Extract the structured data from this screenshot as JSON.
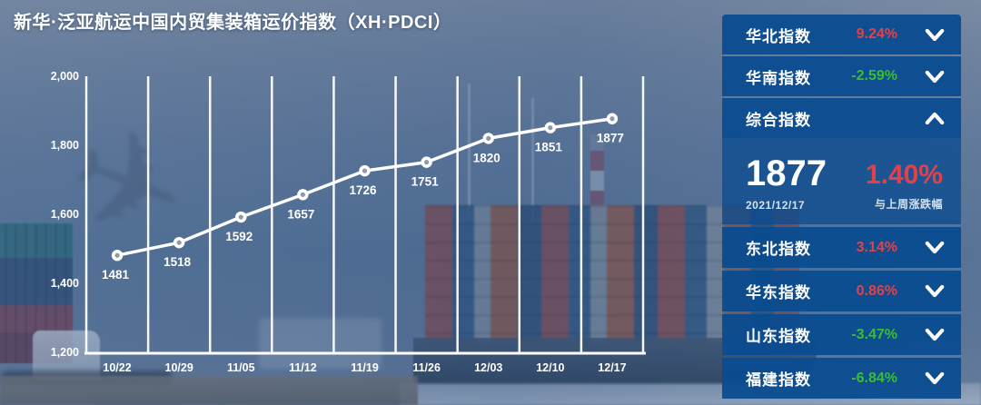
{
  "title": "新华·泛亚航运中国内贸集装箱运价指数（XH·PDCI）",
  "theme": {
    "panel_blue": "#0a4c90",
    "up_red": "#e2414b",
    "down_green": "#3bbd33",
    "chart_line": "#ffffff"
  },
  "chart_data": {
    "type": "line",
    "title": "新华·泛亚航运中国内贸集装箱运价指数（XH·PDCI）",
    "categories": [
      "10/22",
      "10/29",
      "11/05",
      "11/12",
      "11/19",
      "11/26",
      "12/03",
      "12/10",
      "12/17"
    ],
    "series": [
      {
        "name": "XH·PDCI 综合指数",
        "values": [
          1481,
          1518,
          1592,
          1657,
          1726,
          1751,
          1820,
          1851,
          1877
        ]
      }
    ],
    "ylim": [
      1200,
      2000
    ],
    "y_ticks": [
      "1,200",
      "1,400",
      "1,600",
      "1,800",
      "2,000"
    ],
    "grid": "vertical-only",
    "legend": "none",
    "point_labels": true
  },
  "panel": {
    "items_top": [
      {
        "label": "华北指数",
        "change": "9.24%",
        "direction": "up",
        "expanded": false
      },
      {
        "label": "华南指数",
        "change": "-2.59%",
        "direction": "down",
        "expanded": false
      }
    ],
    "composite": {
      "label": "综合指数",
      "expanded": true,
      "value": "1877",
      "date": "2021/12/17",
      "change": "1.40%",
      "direction": "up",
      "change_caption": "与上周涨跌幅"
    },
    "items_bottom": [
      {
        "label": "东北指数",
        "change": "3.14%",
        "direction": "up",
        "expanded": false
      },
      {
        "label": "华东指数",
        "change": "0.86%",
        "direction": "up",
        "expanded": false
      },
      {
        "label": "山东指数",
        "change": "-3.47%",
        "direction": "down",
        "expanded": false
      },
      {
        "label": "福建指数",
        "change": "-6.84%",
        "direction": "down",
        "expanded": false
      }
    ]
  },
  "icons": {
    "collapse_more": "chevron-down",
    "collapse_less": "chevron-up",
    "plane_glyph": "✈"
  }
}
